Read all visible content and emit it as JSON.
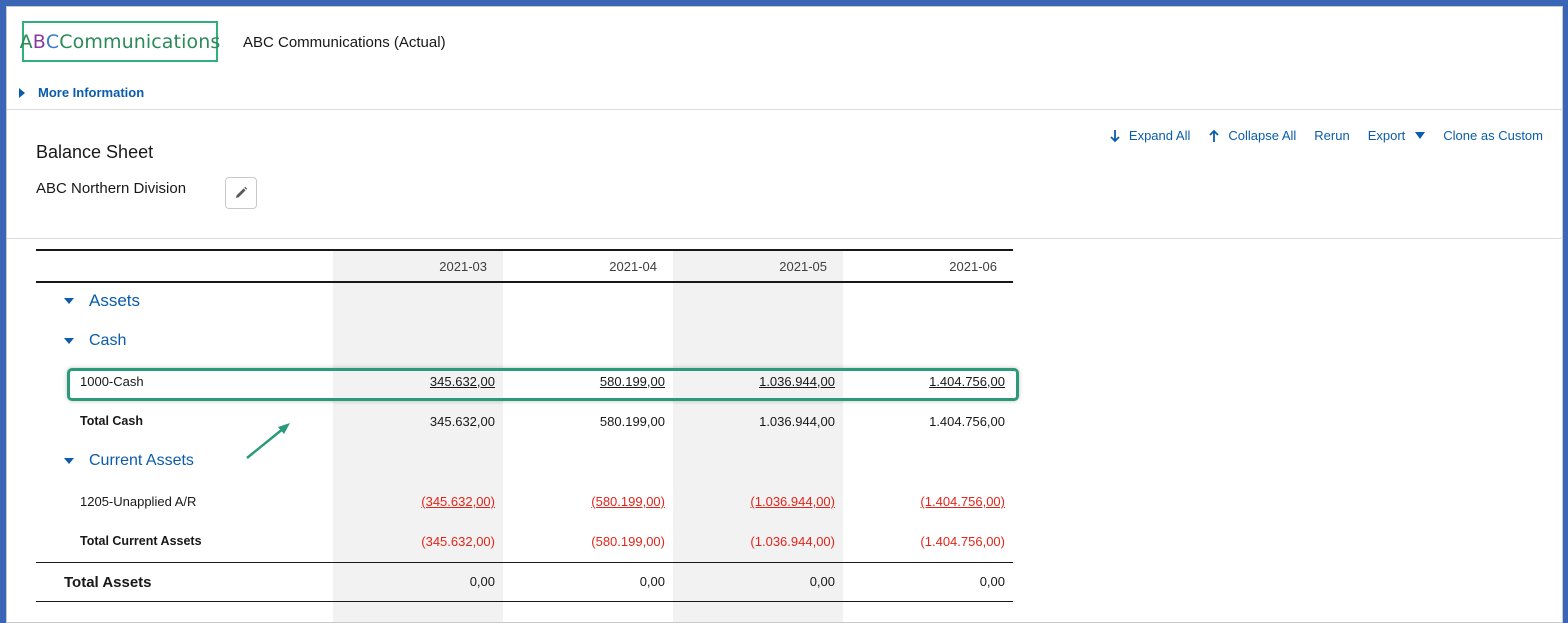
{
  "header": {
    "logo_text_a": "A",
    "logo_text_b": "B",
    "logo_text_c": "C",
    "logo_text_rest": " Communications",
    "page_title": "ABC Communications (Actual)",
    "more_info_label": "More Information"
  },
  "report": {
    "title": "Balance Sheet",
    "division": "ABC Northern Division",
    "actions": {
      "expand_all": "Expand All",
      "collapse_all": "Collapse All",
      "rerun": "Rerun",
      "export": "Export",
      "clone": "Clone as Custom"
    }
  },
  "columns": [
    "2021-03",
    "2021-04",
    "2021-05",
    "2021-06"
  ],
  "rows": {
    "assets": "Assets",
    "cash": "Cash",
    "cash_account": {
      "label": "1000-Cash",
      "values": [
        "345.632,00",
        "580.199,00",
        "1.036.944,00",
        "1.404.756,00"
      ]
    },
    "total_cash": {
      "label": "Total Cash",
      "values": [
        "345.632,00",
        "580.199,00",
        "1.036.944,00",
        "1.404.756,00"
      ]
    },
    "current_assets": "Current Assets",
    "unapplied": {
      "label": "1205-Unapplied A/R",
      "values": [
        "(345.632,00)",
        "(580.199,00)",
        "(1.036.944,00)",
        "(1.404.756,00)"
      ]
    },
    "total_current_assets": {
      "label": "Total Current Assets",
      "values": [
        "(345.632,00)",
        "(580.199,00)",
        "(1.036.944,00)",
        "(1.404.756,00)"
      ]
    },
    "total_assets": {
      "label": "Total Assets",
      "values": [
        "0,00",
        "0,00",
        "0,00",
        "0,00"
      ]
    }
  },
  "colors": {
    "link": "#0b5cab",
    "negative": "#e0251b",
    "highlight": "#2b9a7a"
  }
}
